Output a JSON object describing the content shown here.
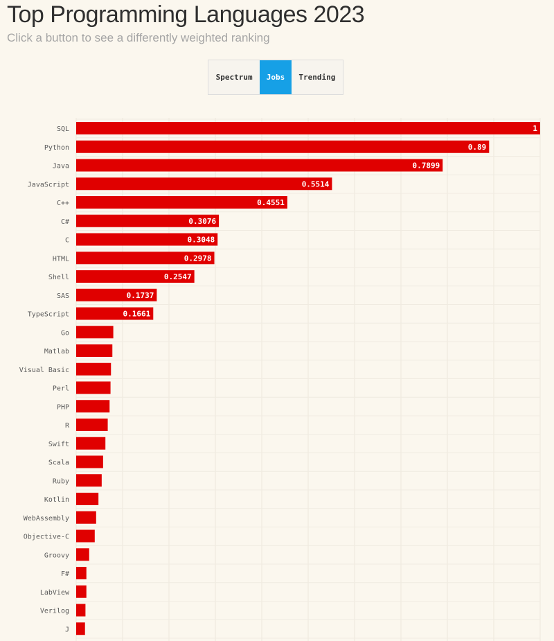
{
  "header": {
    "title": "Top Programming Languages 2023",
    "subtitle": "Click a button to see a differently weighted ranking"
  },
  "buttons": {
    "spectrum": "Spectrum",
    "jobs": "Jobs",
    "trending": "Trending",
    "selected": "Jobs"
  },
  "colors": {
    "bar": "#e00000",
    "selected_button": "#16a0e6",
    "background": "#fbf7ee"
  },
  "chart_data": {
    "type": "bar",
    "orientation": "horizontal",
    "title": "Top Programming Languages 2023",
    "subtitle": "Click a button to see a differently weighted ranking",
    "xlim": [
      0,
      1
    ],
    "grid": true,
    "categories": [
      "SQL",
      "Python",
      "Java",
      "JavaScript",
      "C++",
      "C#",
      "C",
      "HTML",
      "Shell",
      "SAS",
      "TypeScript",
      "Go",
      "Matlab",
      "Visual Basic",
      "Perl",
      "PHP",
      "R",
      "Swift",
      "Scala",
      "Ruby",
      "Kotlin",
      "WebAssembly",
      "Objective-C",
      "Groovy",
      "F#",
      "LabView",
      "Verilog",
      "J"
    ],
    "values": [
      1,
      0.89,
      0.7899,
      0.5514,
      0.4551,
      0.3076,
      0.3048,
      0.2978,
      0.2547,
      0.1737,
      0.1661,
      0.08,
      0.078,
      0.075,
      0.074,
      0.072,
      0.068,
      0.063,
      0.058,
      0.055,
      0.048,
      0.043,
      0.04,
      0.028,
      0.022,
      0.022,
      0.02,
      0.019
    ],
    "value_labels": [
      "1",
      "0.89",
      "0.7899",
      "0.5514",
      "0.4551",
      "0.3076",
      "0.3048",
      "0.2978",
      "0.2547",
      "0.1737",
      "0.1661",
      "",
      "",
      "",
      "",
      "",
      "",
      "",
      "",
      "",
      "",
      "",
      "",
      "",
      "",
      "",
      "",
      ""
    ]
  }
}
